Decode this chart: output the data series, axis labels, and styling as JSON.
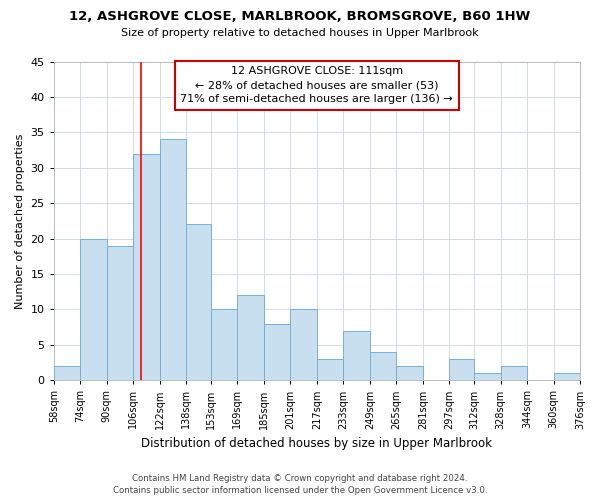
{
  "title": "12, ASHGROVE CLOSE, MARLBROOK, BROMSGROVE, B60 1HW",
  "subtitle": "Size of property relative to detached houses in Upper Marlbrook",
  "xlabel": "Distribution of detached houses by size in Upper Marlbrook",
  "ylabel": "Number of detached properties",
  "bin_labels": [
    "58sqm",
    "74sqm",
    "90sqm",
    "106sqm",
    "122sqm",
    "138sqm",
    "153sqm",
    "169sqm",
    "185sqm",
    "201sqm",
    "217sqm",
    "233sqm",
    "249sqm",
    "265sqm",
    "281sqm",
    "297sqm",
    "312sqm",
    "328sqm",
    "344sqm",
    "360sqm",
    "376sqm"
  ],
  "bin_edges": [
    58,
    74,
    90,
    106,
    122,
    138,
    153,
    169,
    185,
    201,
    217,
    233,
    249,
    265,
    281,
    297,
    312,
    328,
    344,
    360,
    376
  ],
  "bar_heights": [
    2,
    20,
    19,
    32,
    34,
    22,
    10,
    12,
    8,
    10,
    3,
    7,
    4,
    2,
    0,
    3,
    1,
    2,
    0,
    1
  ],
  "bar_color": "#c8dff0",
  "bar_edge_color": "#7aafd4",
  "grid_color": "#d0dce8",
  "red_line_x": 111,
  "ylim": [
    0,
    45
  ],
  "yticks": [
    0,
    5,
    10,
    15,
    20,
    25,
    30,
    35,
    40,
    45
  ],
  "annotation_title": "12 ASHGROVE CLOSE: 111sqm",
  "annotation_line1": "← 28% of detached houses are smaller (53)",
  "annotation_line2": "71% of semi-detached houses are larger (136) →",
  "annotation_box_color": "#ffffff",
  "annotation_box_edge": "#cc0000",
  "footer_line1": "Contains HM Land Registry data © Crown copyright and database right 2024.",
  "footer_line2": "Contains public sector information licensed under the Open Government Licence v3.0."
}
